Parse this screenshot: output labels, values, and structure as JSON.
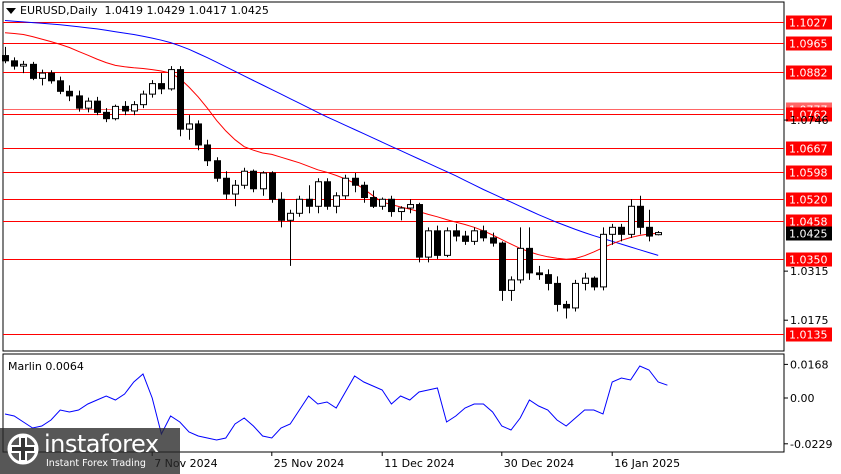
{
  "header": {
    "symbol_timeframe": "EURUSD,Daily",
    "ohlc": "1.0419 1.0429 1.0417 1.0425"
  },
  "indicator": {
    "label": "Marlin 0.0064"
  },
  "price_levels": [
    {
      "label": "1.1027",
      "value": 1.1027,
      "kind": "level"
    },
    {
      "label": "1.0965",
      "value": 1.0965,
      "kind": "level"
    },
    {
      "label": "1.0882",
      "value": 1.0882,
      "kind": "level"
    },
    {
      "label": "1.0777",
      "value": 1.0777,
      "kind": "level-faint"
    },
    {
      "label": "1.0762",
      "value": 1.0762,
      "kind": "level"
    },
    {
      "label": "1.0667",
      "value": 1.0667,
      "kind": "level"
    },
    {
      "label": "1.0598",
      "value": 1.0598,
      "kind": "level"
    },
    {
      "label": "1.0520",
      "value": 1.052,
      "kind": "level"
    },
    {
      "label": "1.0458",
      "value": 1.0458,
      "kind": "level"
    },
    {
      "label": "1.0425",
      "value": 1.0425,
      "kind": "current"
    },
    {
      "label": "1.0350",
      "value": 1.035,
      "kind": "level"
    },
    {
      "label": "1.0135",
      "value": 1.0135,
      "kind": "level"
    }
  ],
  "price_ticks": [
    {
      "label": "1.0746",
      "value": 1.0746
    },
    {
      "label": "1.0315",
      "value": 1.0315
    },
    {
      "label": "1.0175",
      "value": 1.0175
    }
  ],
  "indicator_ticks": [
    {
      "label": "0.0168",
      "value": 0.0168
    },
    {
      "label": "0.00",
      "value": 0.0
    },
    {
      "label": "-0.0229",
      "value": -0.0229
    }
  ],
  "date_labels": [
    {
      "label": "7 Nov 2024",
      "bar": 16
    },
    {
      "label": "25 Nov 2024",
      "bar": 29
    },
    {
      "label": "11 Dec 2024",
      "bar": 41
    },
    {
      "label": "30 Dec 2024",
      "bar": 54
    },
    {
      "label": "16 Jan 2025",
      "bar": 66
    }
  ],
  "watermark": {
    "name": "instaforex",
    "tagline": "Instant Forex Trading"
  },
  "colors": {
    "level": "#ff0000",
    "current_label_bg": "#000000",
    "ma_fast": "#ff0000",
    "ma_slow": "#0000ff",
    "indicator": "#0000ff"
  },
  "chart_data": {
    "type": "candlestick",
    "symbol": "EURUSD",
    "timeframe": "Daily",
    "ylim": [
      1.009,
      1.108
    ],
    "candles": [
      [
        1.093,
        1.0955,
        1.0908,
        1.0915
      ],
      [
        1.0915,
        1.0925,
        1.089,
        1.09
      ],
      [
        1.09,
        1.0915,
        1.088,
        1.0905
      ],
      [
        1.0905,
        1.0912,
        1.086,
        1.0865
      ],
      [
        1.0865,
        1.089,
        1.0845,
        1.088
      ],
      [
        1.088,
        1.0888,
        1.085,
        1.0858
      ],
      [
        1.0858,
        1.087,
        1.082,
        1.0828
      ],
      [
        1.0828,
        1.0845,
        1.08,
        1.0815
      ],
      [
        1.0815,
        1.083,
        1.077,
        1.078
      ],
      [
        1.078,
        1.081,
        1.0768,
        1.08
      ],
      [
        1.08,
        1.0812,
        1.076,
        1.0768
      ],
      [
        1.0768,
        1.078,
        1.074,
        1.075
      ],
      [
        1.075,
        1.079,
        1.0745,
        1.0785
      ],
      [
        1.0785,
        1.08,
        1.076,
        1.0772
      ],
      [
        1.0772,
        1.08,
        1.076,
        1.079
      ],
      [
        1.079,
        1.083,
        1.078,
        1.082
      ],
      [
        1.082,
        1.086,
        1.081,
        1.085
      ],
      [
        1.085,
        1.088,
        1.082,
        1.0835
      ],
      [
        1.0835,
        1.09,
        1.083,
        1.089
      ],
      [
        1.089,
        1.09,
        1.07,
        1.072
      ],
      [
        1.072,
        1.076,
        1.069,
        1.0735
      ],
      [
        1.0735,
        1.0745,
        1.066,
        1.0675
      ],
      [
        1.0675,
        1.069,
        1.0615,
        1.063
      ],
      [
        1.063,
        1.064,
        1.057,
        1.058
      ],
      [
        1.058,
        1.06,
        1.052,
        1.0535
      ],
      [
        1.0535,
        1.0575,
        1.05,
        1.056
      ],
      [
        1.056,
        1.061,
        1.055,
        1.06
      ],
      [
        1.06,
        1.0605,
        1.054,
        1.055
      ],
      [
        1.055,
        1.06,
        1.053,
        1.0595
      ],
      [
        1.0595,
        1.06,
        1.051,
        1.052
      ],
      [
        1.052,
        1.054,
        1.044,
        1.046
      ],
      [
        1.046,
        1.049,
        1.033,
        1.048
      ],
      [
        1.048,
        1.053,
        1.047,
        1.052
      ],
      [
        1.052,
        1.056,
        1.048,
        1.05
      ],
      [
        1.05,
        1.058,
        1.048,
        1.057
      ],
      [
        1.057,
        1.058,
        1.049,
        1.05
      ],
      [
        1.05,
        1.054,
        1.048,
        1.053
      ],
      [
        1.053,
        1.059,
        1.052,
        1.058
      ],
      [
        1.058,
        1.0595,
        1.054,
        1.056
      ],
      [
        1.056,
        1.057,
        1.051,
        1.0525
      ],
      [
        1.0525,
        1.0545,
        1.0495,
        1.05
      ],
      [
        1.05,
        1.0525,
        1.049,
        1.052
      ],
      [
        1.052,
        1.053,
        1.047,
        1.0485
      ],
      [
        1.0485,
        1.05,
        1.046,
        1.0495
      ],
      [
        1.0495,
        1.052,
        1.048,
        1.0505
      ],
      [
        1.0505,
        1.051,
        1.034,
        1.0355
      ],
      [
        1.0355,
        1.044,
        1.034,
        1.043
      ],
      [
        1.043,
        1.0445,
        1.035,
        1.036
      ],
      [
        1.036,
        1.044,
        1.0355,
        1.043
      ],
      [
        1.043,
        1.045,
        1.04,
        1.0415
      ],
      [
        1.0415,
        1.043,
        1.039,
        1.04
      ],
      [
        1.04,
        1.044,
        1.039,
        1.043
      ],
      [
        1.043,
        1.0445,
        1.04,
        1.041
      ],
      [
        1.041,
        1.0425,
        1.0385,
        1.0395
      ],
      [
        1.0395,
        1.04,
        1.023,
        1.026
      ],
      [
        1.026,
        1.03,
        1.023,
        1.029
      ],
      [
        1.029,
        1.044,
        1.028,
        1.038
      ],
      [
        1.038,
        1.044,
        1.029,
        1.031
      ],
      [
        1.031,
        1.033,
        1.029,
        1.0305
      ],
      [
        1.0305,
        1.032,
        1.026,
        1.028
      ],
      [
        1.028,
        1.03,
        1.02,
        1.022
      ],
      [
        1.022,
        1.023,
        1.018,
        1.021
      ],
      [
        1.021,
        1.029,
        1.02,
        1.028
      ],
      [
        1.028,
        1.031,
        1.026,
        1.0295
      ],
      [
        1.0295,
        1.03,
        1.026,
        1.027
      ],
      [
        1.027,
        1.044,
        1.026,
        1.042
      ],
      [
        1.042,
        1.045,
        1.039,
        1.044
      ],
      [
        1.044,
        1.045,
        1.04,
        1.042
      ],
      [
        1.042,
        1.052,
        1.041,
        1.05
      ],
      [
        1.05,
        1.053,
        1.042,
        1.044
      ],
      [
        1.044,
        1.049,
        1.04,
        1.0415
      ],
      [
        1.0419,
        1.0429,
        1.0417,
        1.0425
      ]
    ],
    "ma_fast": [
      1.0995,
      1.0993,
      1.099,
      1.0984,
      1.0977,
      1.097,
      1.0962,
      1.0953,
      1.0942,
      1.0931,
      1.092,
      1.091,
      1.0902,
      1.0898,
      1.0895,
      1.0893,
      1.089,
      1.0886,
      1.088,
      1.0865,
      1.084,
      1.0812,
      1.078,
      1.0745,
      1.0715,
      1.069,
      1.067,
      1.066,
      1.0652,
      1.0648,
      1.064,
      1.0632,
      1.0624,
      1.0614,
      1.0604,
      1.0597,
      1.0588,
      1.0578,
      1.0566,
      1.055,
      1.053,
      1.0512,
      1.0505,
      1.0498,
      1.0492,
      1.0485,
      1.0477,
      1.047,
      1.0462,
      1.0455,
      1.0448,
      1.044,
      1.043,
      1.0418,
      1.0405,
      1.0392,
      1.038,
      1.037,
      1.0362,
      1.0356,
      1.0352,
      1.0349,
      1.0351,
      1.0359,
      1.037,
      1.0382,
      1.0393,
      1.0403,
      1.0411,
      1.0417,
      1.0421,
      1.0423
    ],
    "ma_slow": [
      1.103,
      1.1028,
      1.1026,
      1.1024,
      1.1022,
      1.102,
      1.1018,
      1.1015,
      1.1012,
      1.1009,
      1.1006,
      1.1002,
      1.0998,
      1.0994,
      1.099,
      1.0985,
      1.098,
      1.0974,
      1.0967,
      1.0958,
      1.0948,
      1.0936,
      1.0924,
      1.0911,
      1.0898,
      1.0885,
      1.0872,
      1.0859,
      1.0846,
      1.0833,
      1.082,
      1.0807,
      1.0794,
      1.0781,
      1.0768,
      1.0755,
      1.0743,
      1.0731,
      1.0719,
      1.0707,
      1.0695,
      1.0683,
      1.0671,
      1.0659,
      1.0647,
      1.0635,
      1.0623,
      1.0611,
      1.0599,
      1.0587,
      1.0574,
      1.0561,
      1.0548,
      1.0536,
      1.0524,
      1.0512,
      1.05,
      1.0488,
      1.0476,
      1.0465,
      1.0454,
      1.0444,
      1.0434,
      1.0425,
      1.0416,
      1.0408,
      1.04,
      1.0392,
      1.0384,
      1.0376,
      1.0368,
      1.036
    ],
    "indicator": {
      "name": "Marlin",
      "ylim": [
        -0.026,
        0.02
      ],
      "values": [
        -0.008,
        -0.009,
        -0.012,
        -0.015,
        -0.014,
        -0.011,
        -0.006,
        -0.007,
        -0.006,
        -0.003,
        -0.001,
        0.001,
        -0.001,
        0.002,
        0.008,
        0.012,
        0.0,
        -0.018,
        -0.009,
        -0.012,
        -0.017,
        -0.019,
        -0.02,
        -0.021,
        -0.02,
        -0.013,
        -0.01,
        -0.014,
        -0.019,
        -0.02,
        -0.015,
        -0.013,
        -0.006,
        0.001,
        -0.003,
        -0.002,
        -0.005,
        0.003,
        0.011,
        0.008,
        0.006,
        0.004,
        -0.003,
        0.001,
        -0.001,
        0.003,
        0.004,
        0.005,
        -0.012,
        -0.009,
        -0.005,
        -0.003,
        -0.003,
        -0.007,
        -0.014,
        -0.016,
        -0.01,
        -0.001,
        -0.004,
        -0.006,
        -0.011,
        -0.014,
        -0.01,
        -0.006,
        -0.006,
        -0.008,
        0.008,
        0.01,
        0.009,
        0.016,
        0.014,
        0.008,
        0.0064
      ]
    }
  }
}
